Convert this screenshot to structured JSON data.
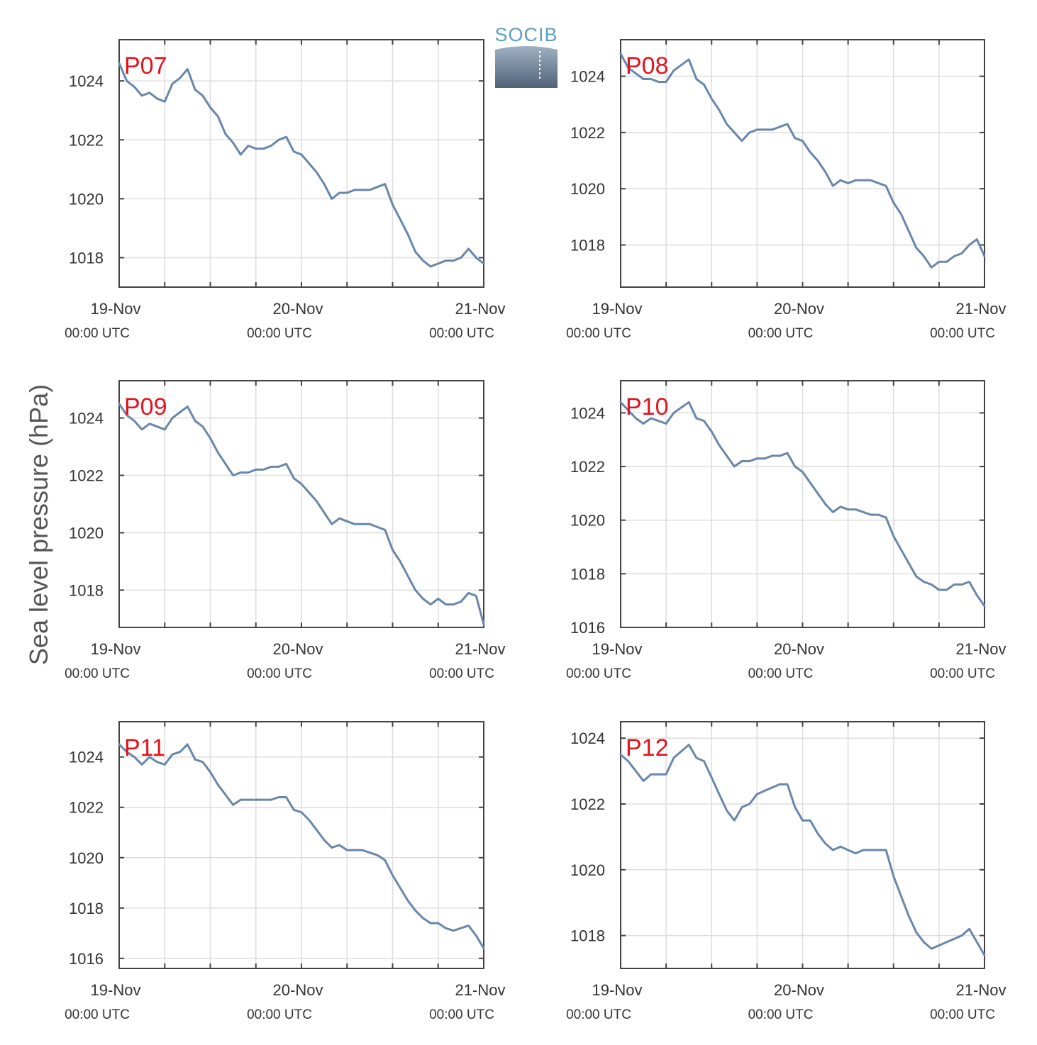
{
  "ylabel": "Sea level pressure (hPa)",
  "logo": {
    "text": "SOCIB"
  },
  "colors": {
    "line": "#6787ab",
    "label": "#e3141e",
    "grid": "#dedede",
    "axis": "#444444"
  },
  "chart_data": [
    {
      "type": "line",
      "label": "P07",
      "x_ticks": [
        {
          "date": "19-Nov",
          "time": "00:00 UTC"
        },
        {
          "date": "20-Nov",
          "time": "00:00 UTC"
        },
        {
          "date": "21-Nov",
          "time": "00:00 UTC"
        }
      ],
      "xlim_hours": [
        0,
        48
      ],
      "ylim": [
        1017.0,
        1025.4
      ],
      "yticks": [
        "1018",
        "1020",
        "1022",
        "1024"
      ],
      "series": [
        {
          "x": [
            0,
            1,
            2,
            3,
            4,
            5,
            6,
            7,
            8,
            9,
            10,
            11,
            12,
            13,
            14,
            15,
            16,
            17,
            18,
            19,
            20,
            21,
            22,
            23,
            24,
            25,
            26,
            27,
            28,
            29,
            30,
            31,
            32,
            33,
            34,
            35,
            36,
            37,
            38,
            39,
            40,
            41,
            42,
            43,
            44,
            45,
            46,
            47,
            48
          ],
          "y": [
            1024.6,
            1024.0,
            1023.8,
            1023.5,
            1023.6,
            1023.4,
            1023.3,
            1023.9,
            1024.1,
            1024.4,
            1023.7,
            1023.5,
            1023.1,
            1022.8,
            1022.2,
            1021.9,
            1021.5,
            1021.8,
            1021.7,
            1021.7,
            1021.8,
            1022.0,
            1022.1,
            1021.6,
            1021.5,
            1021.2,
            1020.9,
            1020.5,
            1020.0,
            1020.2,
            1020.2,
            1020.3,
            1020.3,
            1020.3,
            1020.4,
            1020.5,
            1019.8,
            1019.3,
            1018.8,
            1018.2,
            1017.9,
            1017.7,
            1017.8,
            1017.9,
            1017.9,
            1018.0,
            1018.3,
            1018.0,
            1017.8
          ]
        }
      ]
    },
    {
      "type": "line",
      "label": "P08",
      "x_ticks": [
        {
          "date": "19-Nov",
          "time": "00:00 UTC"
        },
        {
          "date": "20-Nov",
          "time": "00:00 UTC"
        },
        {
          "date": "21-Nov",
          "time": "00:00 UTC"
        }
      ],
      "xlim_hours": [
        0,
        48
      ],
      "ylim": [
        1016.5,
        1025.3
      ],
      "yticks": [
        "1018",
        "1020",
        "1022",
        "1024"
      ],
      "series": [
        {
          "x": [
            0,
            1,
            2,
            3,
            4,
            5,
            6,
            7,
            8,
            9,
            10,
            11,
            12,
            13,
            14,
            15,
            16,
            17,
            18,
            19,
            20,
            21,
            22,
            23,
            24,
            25,
            26,
            27,
            28,
            29,
            30,
            31,
            32,
            33,
            34,
            35,
            36,
            37,
            38,
            39,
            40,
            41,
            42,
            43,
            44,
            45,
            46,
            47,
            48
          ],
          "y": [
            1024.8,
            1024.3,
            1024.1,
            1023.9,
            1023.9,
            1023.8,
            1023.8,
            1024.2,
            1024.4,
            1024.6,
            1023.9,
            1023.7,
            1023.2,
            1022.8,
            1022.3,
            1022.0,
            1021.7,
            1022.0,
            1022.1,
            1022.1,
            1022.1,
            1022.2,
            1022.3,
            1021.8,
            1021.7,
            1021.3,
            1021.0,
            1020.6,
            1020.1,
            1020.3,
            1020.2,
            1020.3,
            1020.3,
            1020.3,
            1020.2,
            1020.1,
            1019.5,
            1019.1,
            1018.5,
            1017.9,
            1017.6,
            1017.2,
            1017.4,
            1017.4,
            1017.6,
            1017.7,
            1018.0,
            1018.2,
            1017.6
          ]
        }
      ]
    },
    {
      "type": "line",
      "label": "P09",
      "x_ticks": [
        {
          "date": "19-Nov",
          "time": "00:00 UTC"
        },
        {
          "date": "20-Nov",
          "time": "00:00 UTC"
        },
        {
          "date": "21-Nov",
          "time": "00:00 UTC"
        }
      ],
      "xlim_hours": [
        0,
        48
      ],
      "ylim": [
        1016.7,
        1025.3
      ],
      "yticks": [
        "1018",
        "1020",
        "1022",
        "1024"
      ],
      "series": [
        {
          "x": [
            0,
            1,
            2,
            3,
            4,
            5,
            6,
            7,
            8,
            9,
            10,
            11,
            12,
            13,
            14,
            15,
            16,
            17,
            18,
            19,
            20,
            21,
            22,
            23,
            24,
            25,
            26,
            27,
            28,
            29,
            30,
            31,
            32,
            33,
            34,
            35,
            36,
            37,
            38,
            39,
            40,
            41,
            42,
            43,
            44,
            45,
            46,
            47,
            48
          ],
          "y": [
            1024.5,
            1024.1,
            1023.9,
            1023.6,
            1023.8,
            1023.7,
            1023.6,
            1024.0,
            1024.2,
            1024.4,
            1023.9,
            1023.7,
            1023.3,
            1022.8,
            1022.4,
            1022.0,
            1022.1,
            1022.1,
            1022.2,
            1022.2,
            1022.3,
            1022.3,
            1022.4,
            1021.9,
            1021.7,
            1021.4,
            1021.1,
            1020.7,
            1020.3,
            1020.5,
            1020.4,
            1020.3,
            1020.3,
            1020.3,
            1020.2,
            1020.1,
            1019.4,
            1019.0,
            1018.5,
            1018.0,
            1017.7,
            1017.5,
            1017.7,
            1017.5,
            1017.5,
            1017.6,
            1017.9,
            1017.8,
            1016.8
          ]
        }
      ]
    },
    {
      "type": "line",
      "label": "P10",
      "x_ticks": [
        {
          "date": "19-Nov",
          "time": "00:00 UTC"
        },
        {
          "date": "20-Nov",
          "time": "00:00 UTC"
        },
        {
          "date": "21-Nov",
          "time": "00:00 UTC"
        }
      ],
      "xlim_hours": [
        0,
        48
      ],
      "ylim": [
        1016.0,
        1025.2
      ],
      "yticks": [
        "1016",
        "1018",
        "1020",
        "1022",
        "1024"
      ],
      "series": [
        {
          "x": [
            0,
            1,
            2,
            3,
            4,
            5,
            6,
            7,
            8,
            9,
            10,
            11,
            12,
            13,
            14,
            15,
            16,
            17,
            18,
            19,
            20,
            21,
            22,
            23,
            24,
            25,
            26,
            27,
            28,
            29,
            30,
            31,
            32,
            33,
            34,
            35,
            36,
            37,
            38,
            39,
            40,
            41,
            42,
            43,
            44,
            45,
            46,
            47,
            48
          ],
          "y": [
            1024.4,
            1024.1,
            1023.8,
            1023.6,
            1023.8,
            1023.7,
            1023.6,
            1024.0,
            1024.2,
            1024.4,
            1023.8,
            1023.7,
            1023.3,
            1022.8,
            1022.4,
            1022.0,
            1022.2,
            1022.2,
            1022.3,
            1022.3,
            1022.4,
            1022.4,
            1022.5,
            1022.0,
            1021.8,
            1021.4,
            1021.0,
            1020.6,
            1020.3,
            1020.5,
            1020.4,
            1020.4,
            1020.3,
            1020.2,
            1020.2,
            1020.1,
            1019.4,
            1018.9,
            1018.4,
            1017.9,
            1017.7,
            1017.6,
            1017.4,
            1017.4,
            1017.6,
            1017.6,
            1017.7,
            1017.2,
            1016.8
          ]
        }
      ]
    },
    {
      "type": "line",
      "label": "P11",
      "x_ticks": [
        {
          "date": "19-Nov",
          "time": "00:00 UTC"
        },
        {
          "date": "20-Nov",
          "time": "00:00 UTC"
        },
        {
          "date": "21-Nov",
          "time": "00:00 UTC"
        }
      ],
      "xlim_hours": [
        0,
        48
      ],
      "ylim": [
        1015.6,
        1025.4
      ],
      "yticks": [
        "1016",
        "1018",
        "1020",
        "1022",
        "1024"
      ],
      "series": [
        {
          "x": [
            0,
            1,
            2,
            3,
            4,
            5,
            6,
            7,
            8,
            9,
            10,
            11,
            12,
            13,
            14,
            15,
            16,
            17,
            18,
            19,
            20,
            21,
            22,
            23,
            24,
            25,
            26,
            27,
            28,
            29,
            30,
            31,
            32,
            33,
            34,
            35,
            36,
            37,
            38,
            39,
            40,
            41,
            42,
            43,
            44,
            45,
            46,
            47,
            48
          ],
          "y": [
            1024.5,
            1024.2,
            1024.0,
            1023.7,
            1024.0,
            1023.8,
            1023.7,
            1024.1,
            1024.2,
            1024.5,
            1023.9,
            1023.8,
            1023.4,
            1022.9,
            1022.5,
            1022.1,
            1022.3,
            1022.3,
            1022.3,
            1022.3,
            1022.3,
            1022.4,
            1022.4,
            1021.9,
            1021.8,
            1021.5,
            1021.1,
            1020.7,
            1020.4,
            1020.5,
            1020.3,
            1020.3,
            1020.3,
            1020.2,
            1020.1,
            1019.9,
            1019.3,
            1018.8,
            1018.3,
            1017.9,
            1017.6,
            1017.4,
            1017.4,
            1017.2,
            1017.1,
            1017.2,
            1017.3,
            1016.9,
            1016.4
          ]
        }
      ]
    },
    {
      "type": "line",
      "label": "P12",
      "x_ticks": [
        {
          "date": "19-Nov",
          "time": "00:00 UTC"
        },
        {
          "date": "20-Nov",
          "time": "00:00 UTC"
        },
        {
          "date": "21-Nov",
          "time": "00:00 UTC"
        }
      ],
      "xlim_hours": [
        0,
        48
      ],
      "ylim": [
        1017.0,
        1024.5
      ],
      "yticks": [
        "1018",
        "1020",
        "1022",
        "1024"
      ],
      "series": [
        {
          "x": [
            0,
            1,
            2,
            3,
            4,
            5,
            6,
            7,
            8,
            9,
            10,
            11,
            12,
            13,
            14,
            15,
            16,
            17,
            18,
            19,
            20,
            21,
            22,
            23,
            24,
            25,
            26,
            27,
            28,
            29,
            30,
            31,
            32,
            33,
            34,
            35,
            36,
            37,
            38,
            39,
            40,
            41,
            42,
            43,
            44,
            45,
            46,
            47,
            48
          ],
          "y": [
            1023.5,
            1023.3,
            1023.0,
            1022.7,
            1022.9,
            1022.9,
            1022.9,
            1023.4,
            1023.6,
            1023.8,
            1023.4,
            1023.3,
            1022.8,
            1022.3,
            1021.8,
            1021.5,
            1021.9,
            1022.0,
            1022.3,
            1022.4,
            1022.5,
            1022.6,
            1022.6,
            1021.9,
            1021.5,
            1021.5,
            1021.1,
            1020.8,
            1020.6,
            1020.7,
            1020.6,
            1020.5,
            1020.6,
            1020.6,
            1020.6,
            1020.6,
            1019.8,
            1019.2,
            1018.6,
            1018.1,
            1017.8,
            1017.6,
            1017.7,
            1017.8,
            1017.9,
            1018.0,
            1018.2,
            1017.8,
            1017.4
          ]
        }
      ]
    }
  ]
}
